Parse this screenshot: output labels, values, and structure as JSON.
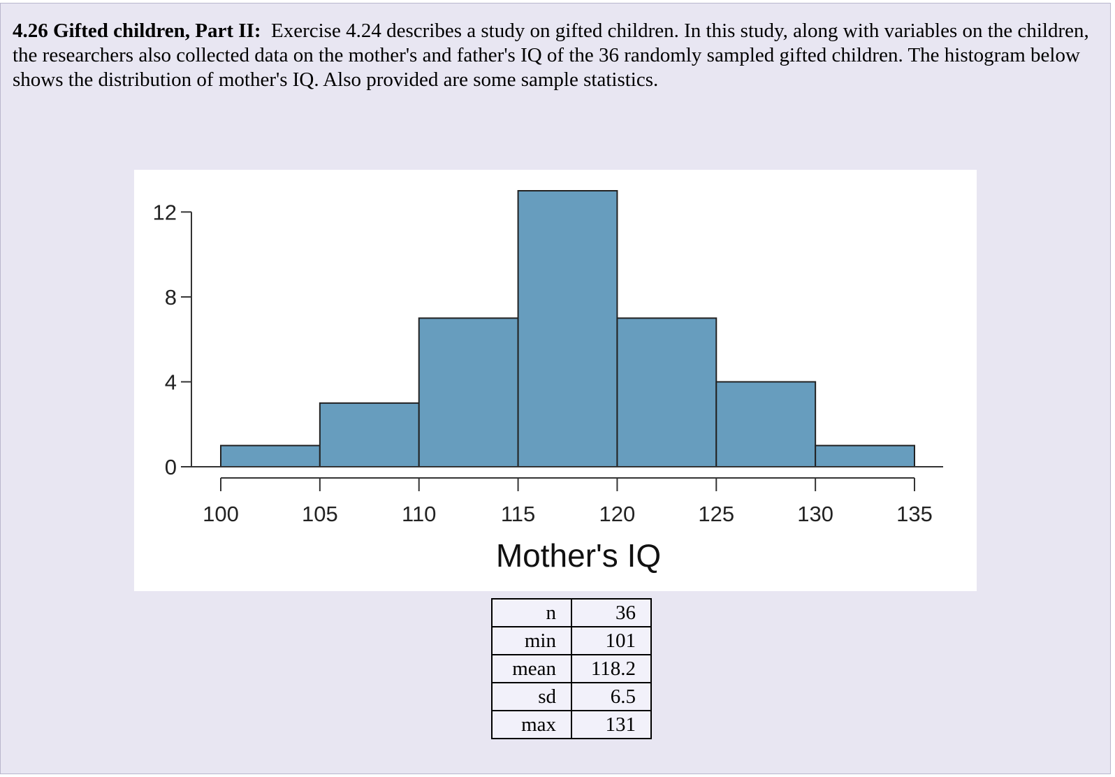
{
  "problem": {
    "heading": "4.26 Gifted children, Part II:",
    "body": "Exercise 4.24 describes a study on gifted children. In this study, along with variables on the children, the researchers also collected data on the mother's and father's IQ of the 36 randomly sampled gifted children. The histogram below shows the distribution of mother's IQ. Also provided are some sample statistics."
  },
  "chart_data": {
    "type": "bar",
    "subtype": "histogram",
    "bin_edges": [
      100,
      105,
      110,
      115,
      120,
      125,
      130,
      135
    ],
    "counts": [
      1,
      3,
      7,
      13,
      7,
      4,
      1
    ],
    "xticks": [
      "100",
      "105",
      "110",
      "115",
      "120",
      "125",
      "130",
      "135"
    ],
    "yticks": [
      "0",
      "4",
      "8",
      "12"
    ],
    "xlabel": "Mother's IQ",
    "ylabel": "",
    "xlim": [
      100,
      135
    ],
    "ylim": [
      0,
      13
    ],
    "grid": false,
    "bar_color": "#679dbe"
  },
  "stats": [
    {
      "label": "n",
      "value": "36"
    },
    {
      "label": "min",
      "value": "101"
    },
    {
      "label": "mean",
      "value": "118.2"
    },
    {
      "label": "sd",
      "value": "6.5"
    },
    {
      "label": "max",
      "value": "131"
    }
  ]
}
